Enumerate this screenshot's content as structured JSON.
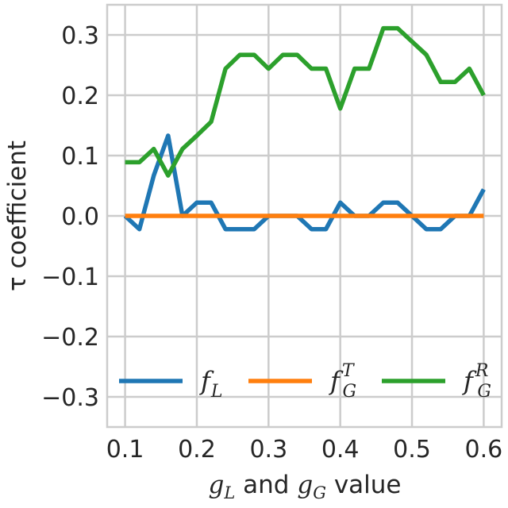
{
  "chart_data": {
    "type": "line",
    "xlabel": {
      "g1": "g",
      "s1": "L",
      "mid": " and ",
      "g2": "g",
      "s2": "G",
      "tail": " value"
    },
    "ylabel": "τ coefficient",
    "xlim": [
      0.075,
      0.625
    ],
    "ylim": [
      -0.35,
      0.35
    ],
    "xticks": [
      "0.1",
      "0.2",
      "0.3",
      "0.4",
      "0.5",
      "0.6"
    ],
    "xtick_values": [
      0.1,
      0.2,
      0.3,
      0.4,
      0.5,
      0.6
    ],
    "yticks": [
      "0.3",
      "0.2",
      "0.1",
      "0.0",
      "−0.1",
      "−0.2",
      "−0.3"
    ],
    "ytick_values": [
      0.3,
      0.2,
      0.1,
      0.0,
      -0.1,
      -0.2,
      -0.3
    ],
    "grid": true,
    "legend_position": "lower-center",
    "x": [
      0.1,
      0.12,
      0.14,
      0.16,
      0.18,
      0.2,
      0.22,
      0.24,
      0.26,
      0.28,
      0.3,
      0.32,
      0.34,
      0.36,
      0.38,
      0.4,
      0.42,
      0.44,
      0.46,
      0.48,
      0.5,
      0.52,
      0.54,
      0.56,
      0.58,
      0.6
    ],
    "series": [
      {
        "legend": {
          "base": "f",
          "sub": "L",
          "sup": ""
        },
        "color": "#1f77b4",
        "values": [
          0.0,
          -0.022,
          0.067,
          0.133,
          0.0,
          0.022,
          0.022,
          -0.022,
          -0.022,
          -0.022,
          0.0,
          0.0,
          0.0,
          -0.022,
          -0.022,
          0.022,
          0.0,
          0.0,
          0.022,
          0.022,
          0.0,
          -0.022,
          -0.022,
          0.0,
          0.0,
          0.044
        ]
      },
      {
        "legend": {
          "base": "f",
          "sub": "G",
          "sup": "T"
        },
        "color": "#ff7f0e",
        "values": [
          0.0,
          0.0,
          0.0,
          0.0,
          0.0,
          0.0,
          0.0,
          0.0,
          0.0,
          0.0,
          0.0,
          0.0,
          0.0,
          0.0,
          0.0,
          0.0,
          0.0,
          0.0,
          0.0,
          0.0,
          0.0,
          0.0,
          0.0,
          0.0,
          0.0,
          0.0
        ]
      },
      {
        "legend": {
          "base": "f",
          "sub": "G",
          "sup": "R"
        },
        "color": "#2ca02c",
        "values": [
          0.089,
          0.089,
          0.111,
          0.067,
          0.111,
          0.133,
          0.156,
          0.244,
          0.267,
          0.267,
          0.244,
          0.267,
          0.267,
          0.244,
          0.244,
          0.178,
          0.244,
          0.244,
          0.311,
          0.311,
          0.289,
          0.267,
          0.222,
          0.222,
          0.244,
          0.2
        ]
      }
    ]
  }
}
